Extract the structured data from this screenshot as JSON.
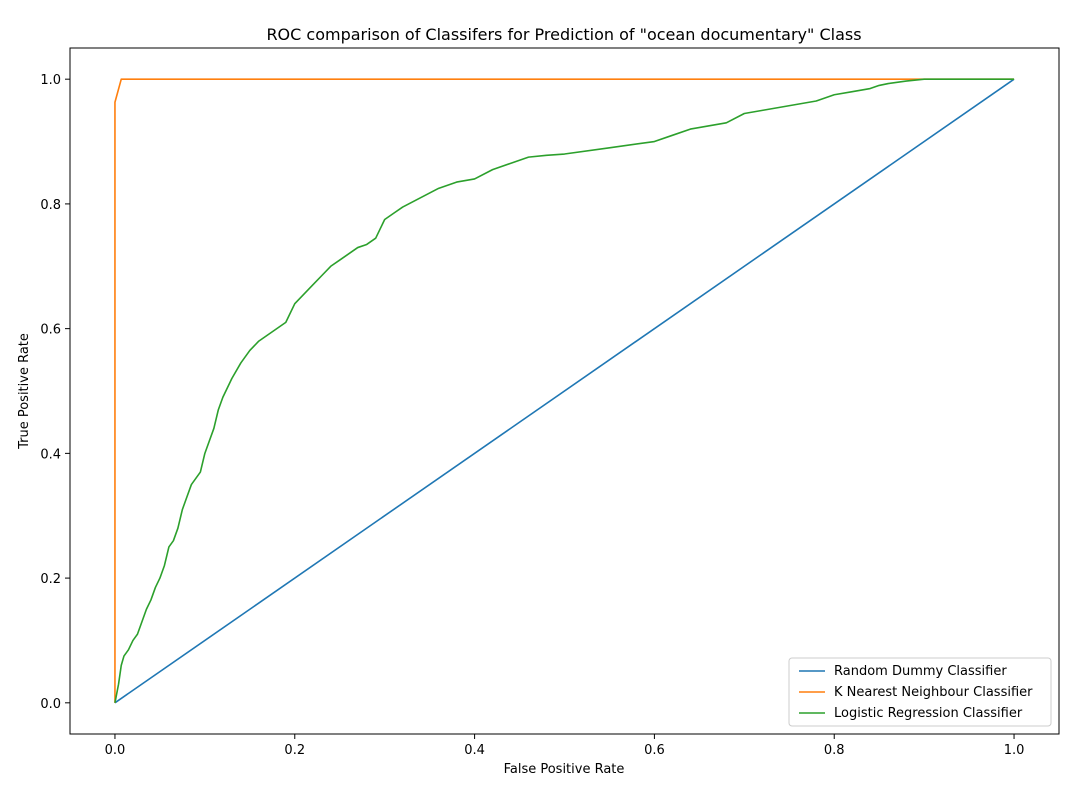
{
  "chart_data": {
    "type": "line",
    "title": "ROC comparison of Classifers for Prediction of \"ocean documentary\" Class",
    "xlabel": "False Positive Rate",
    "ylabel": "True Positive Rate",
    "xlim": [
      -0.05,
      1.05
    ],
    "ylim": [
      -0.05,
      1.05
    ],
    "xticks": [
      0.0,
      0.2,
      0.4,
      0.6,
      0.8,
      1.0
    ],
    "yticks": [
      0.0,
      0.2,
      0.4,
      0.6,
      0.8,
      1.0
    ],
    "xtick_labels": [
      "0.0",
      "0.2",
      "0.4",
      "0.6",
      "0.8",
      "1.0"
    ],
    "ytick_labels": [
      "0.0",
      "0.2",
      "0.4",
      "0.6",
      "0.8",
      "1.0"
    ],
    "grid": false,
    "legend_position": "lower-right",
    "series": [
      {
        "name": "Random Dummy Classifier",
        "color": "#1f77b4",
        "x": [
          0.0,
          1.0
        ],
        "y": [
          0.0,
          1.0
        ]
      },
      {
        "name": "K Nearest Neighbour Classifier",
        "color": "#ff7f0e",
        "x": [
          0.0,
          0.0,
          0.007,
          0.89,
          1.0
        ],
        "y": [
          0.0,
          0.963,
          1.0,
          1.0,
          1.0
        ]
      },
      {
        "name": "Logistic Regression Classifier",
        "color": "#2ca02c",
        "x": [
          0.0,
          0.004,
          0.007,
          0.01,
          0.015,
          0.02,
          0.025,
          0.03,
          0.035,
          0.04,
          0.045,
          0.05,
          0.055,
          0.06,
          0.065,
          0.07,
          0.075,
          0.08,
          0.085,
          0.09,
          0.095,
          0.1,
          0.105,
          0.11,
          0.115,
          0.12,
          0.13,
          0.14,
          0.15,
          0.16,
          0.17,
          0.18,
          0.19,
          0.2,
          0.21,
          0.22,
          0.23,
          0.24,
          0.25,
          0.26,
          0.27,
          0.28,
          0.29,
          0.3,
          0.31,
          0.32,
          0.34,
          0.36,
          0.38,
          0.4,
          0.42,
          0.44,
          0.46,
          0.48,
          0.5,
          0.55,
          0.6,
          0.62,
          0.64,
          0.66,
          0.68,
          0.7,
          0.72,
          0.74,
          0.76,
          0.78,
          0.8,
          0.82,
          0.84,
          0.85,
          0.86,
          0.88,
          0.9,
          1.0
        ],
        "y": [
          0.0,
          0.03,
          0.06,
          0.075,
          0.085,
          0.1,
          0.11,
          0.13,
          0.15,
          0.165,
          0.185,
          0.2,
          0.22,
          0.25,
          0.26,
          0.28,
          0.31,
          0.33,
          0.35,
          0.36,
          0.37,
          0.4,
          0.42,
          0.44,
          0.47,
          0.49,
          0.52,
          0.545,
          0.565,
          0.58,
          0.59,
          0.6,
          0.61,
          0.64,
          0.655,
          0.67,
          0.685,
          0.7,
          0.71,
          0.72,
          0.73,
          0.735,
          0.745,
          0.775,
          0.785,
          0.795,
          0.81,
          0.825,
          0.835,
          0.84,
          0.855,
          0.865,
          0.875,
          0.878,
          0.88,
          0.89,
          0.9,
          0.91,
          0.92,
          0.925,
          0.93,
          0.945,
          0.95,
          0.955,
          0.96,
          0.965,
          0.975,
          0.98,
          0.985,
          0.99,
          0.993,
          0.997,
          1.0,
          1.0
        ]
      }
    ]
  }
}
